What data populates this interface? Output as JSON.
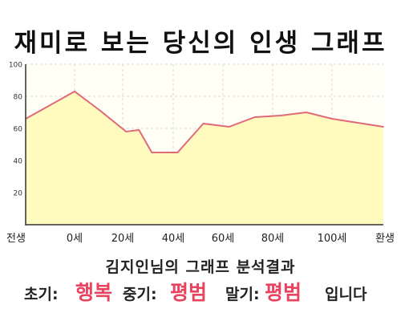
{
  "chart_data": {
    "type": "area",
    "title": "재미로 보는 당신의 인생 그래프",
    "x_tick_labels": [
      "전생",
      "0세",
      "20세",
      "40세",
      "60세",
      "80세",
      "100세",
      "환생"
    ],
    "y_ticks": [
      20,
      40,
      60,
      80,
      100
    ],
    "ylim": [
      0,
      100
    ],
    "x": [
      "전생",
      0,
      10,
      20,
      25,
      30,
      40,
      50,
      60,
      70,
      80,
      90,
      100,
      "환생"
    ],
    "values": [
      66,
      83,
      71,
      58,
      59,
      45,
      45,
      63,
      61,
      67,
      68,
      70,
      66,
      61
    ],
    "grid": true,
    "colors": {
      "line": "#e06a78",
      "fill": "#fffbbf",
      "plot_background": "#fffff5",
      "grid": "#d8d8d8"
    }
  },
  "summary": {
    "heading": "김지인님의 그래프 분석결과",
    "early_label": "초기:",
    "early_value": "행복",
    "middle_label": "중기:",
    "middle_value": "평범",
    "late_label": "말기:",
    "late_value": "평범",
    "suffix": "입니다",
    "accent_color": "#e8435f"
  }
}
